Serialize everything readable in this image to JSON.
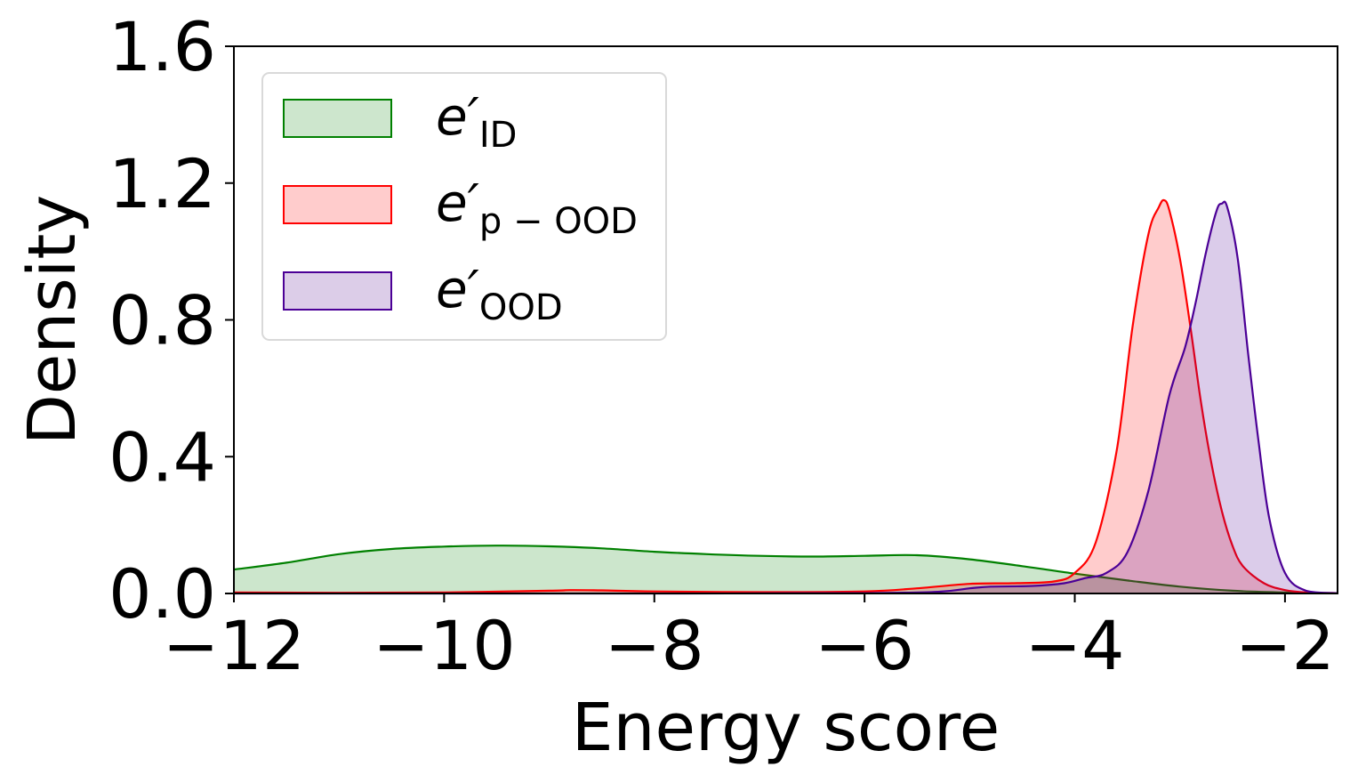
{
  "chart_data": {
    "type": "area",
    "xlabel": "Energy score",
    "ylabel": "Density",
    "xlim": [
      -12,
      -1.5
    ],
    "ylim": [
      0,
      1.6
    ],
    "xticks": [
      -12,
      -10,
      -8,
      -6,
      -4,
      -2
    ],
    "xtick_labels": [
      "−12",
      "−10",
      "−8",
      "−6",
      "−4",
      "−2"
    ],
    "yticks": [
      0,
      0.4,
      0.8,
      1.2,
      1.6
    ],
    "ytick_labels": [
      "0.0",
      "0.4",
      "0.8",
      "1.2",
      "1.6"
    ],
    "grid": false,
    "legend_position": "top-left",
    "series": [
      {
        "name": "e′ID",
        "label_main": "e′",
        "label_sub": "ID",
        "color": "#008000",
        "fill": "#cde6cd",
        "x": [
          -12,
          -11.5,
          -11,
          -10.5,
          -10,
          -9.5,
          -9,
          -8.5,
          -8,
          -7.5,
          -7,
          -6.5,
          -6,
          -5.5,
          -5,
          -4.5,
          -4,
          -3.5,
          -3,
          -2.5,
          -2,
          -1.5
        ],
        "y": [
          0.07,
          0.09,
          0.115,
          0.13,
          0.137,
          0.14,
          0.138,
          0.132,
          0.122,
          0.115,
          0.11,
          0.108,
          0.11,
          0.112,
          0.1,
          0.08,
          0.058,
          0.038,
          0.02,
          0.008,
          0.003,
          0.001
        ]
      },
      {
        "name": "e′p−OOD",
        "label_main": "e′",
        "label_sub": "p − OOD",
        "color": "#ff0000",
        "fill": "#ffcccc",
        "x": [
          -12,
          -11,
          -10,
          -9,
          -8.8,
          -8.5,
          -8,
          -7,
          -6,
          -5.5,
          -5,
          -4.6,
          -4.2,
          -4,
          -3.8,
          -3.6,
          -3.45,
          -3.3,
          -3.2,
          -3.15,
          -3.1,
          -3.0,
          -2.9,
          -2.8,
          -2.7,
          -2.6,
          -2.5,
          -2.4,
          -2.2,
          -2.0,
          -1.8,
          -1.5
        ],
        "y": [
          0.003,
          0.002,
          0.003,
          0.008,
          0.01,
          0.009,
          0.006,
          0.004,
          0.006,
          0.015,
          0.028,
          0.03,
          0.035,
          0.06,
          0.15,
          0.42,
          0.78,
          1.05,
          1.13,
          1.15,
          1.12,
          0.98,
          0.78,
          0.56,
          0.38,
          0.24,
          0.14,
          0.08,
          0.03,
          0.01,
          0.003,
          0.001
        ]
      },
      {
        "name": "e′OOD",
        "label_main": "e′",
        "label_sub": "OOD",
        "color": "#4b0096",
        "fill": "#dccde8",
        "x": [
          -12,
          -10,
          -8,
          -6,
          -5.3,
          -5,
          -4.8,
          -4.4,
          -4.1,
          -3.9,
          -3.7,
          -3.5,
          -3.3,
          -3.1,
          -2.95,
          -2.85,
          -2.75,
          -2.65,
          -2.6,
          -2.55,
          -2.45,
          -2.35,
          -2.25,
          -2.15,
          -2.0,
          -1.8,
          -1.5
        ],
        "y": [
          0.0,
          0.0,
          0.0,
          0.001,
          0.005,
          0.015,
          0.02,
          0.022,
          0.03,
          0.045,
          0.06,
          0.12,
          0.3,
          0.58,
          0.72,
          0.85,
          1.0,
          1.12,
          1.14,
          1.13,
          0.98,
          0.7,
          0.44,
          0.22,
          0.06,
          0.008,
          0.001
        ]
      }
    ]
  }
}
